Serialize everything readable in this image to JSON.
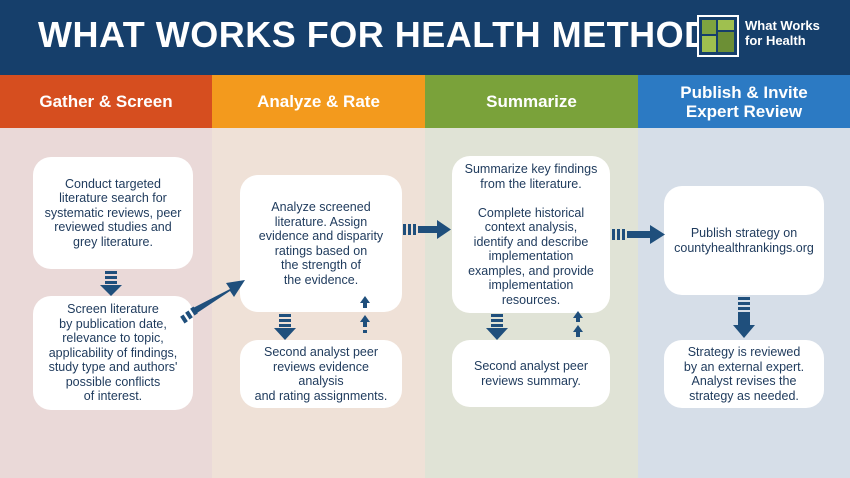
{
  "header": {
    "title": "WHAT WORKS FOR HEALTH METHODS",
    "logo_text": "What Works\nfor Health",
    "background": "#163f6b"
  },
  "columns": [
    {
      "label": "Gather & Screen",
      "head_color": "#d64e1f",
      "bg_color": "#ead9d8"
    },
    {
      "label": "Analyze & Rate",
      "head_color": "#f39a1d",
      "bg_color": "#efe1d7"
    },
    {
      "label": "Summarize",
      "head_color": "#7aa23a",
      "bg_color": "#e0e3d6"
    },
    {
      "label": "Publish & Invite\nExpert Review",
      "head_color": "#2c7ac3",
      "bg_color": "#d6dee8"
    }
  ],
  "boxes": {
    "gather_search": "Conduct targeted\nliterature search for\nsystematic reviews, peer\nreviewed studies and\ngrey literature.",
    "gather_screen": "Screen literature\nby publication date,\nrelevance to topic,\napplicability of findings,\nstudy type and authors'\npossible conflicts\nof interest.",
    "analyze_main": "Analyze screened\nliterature. Assign\nevidence and disparity\nratings based on\nthe strength of\nthe evidence.",
    "analyze_review": "Second analyst peer\nreviews evidence analysis\nand rating assignments.",
    "summarize_main": "Summarize key findings\nfrom the literature.\n\nComplete historical\ncontext analysis,\nidentify and describe\nimplementation\nexamples, and provide\nimplementation resources.",
    "summarize_review": "Second analyst peer\nreviews summary.",
    "publish_main": "Publish strategy on\ncountyhealthrankings.org",
    "publish_review": "Strategy is reviewed\nby an external expert.\nAnalyst revises the\nstrategy as needed."
  },
  "colors": {
    "arrow": "#1f4f7c",
    "box_text": "#1e3a5c"
  }
}
